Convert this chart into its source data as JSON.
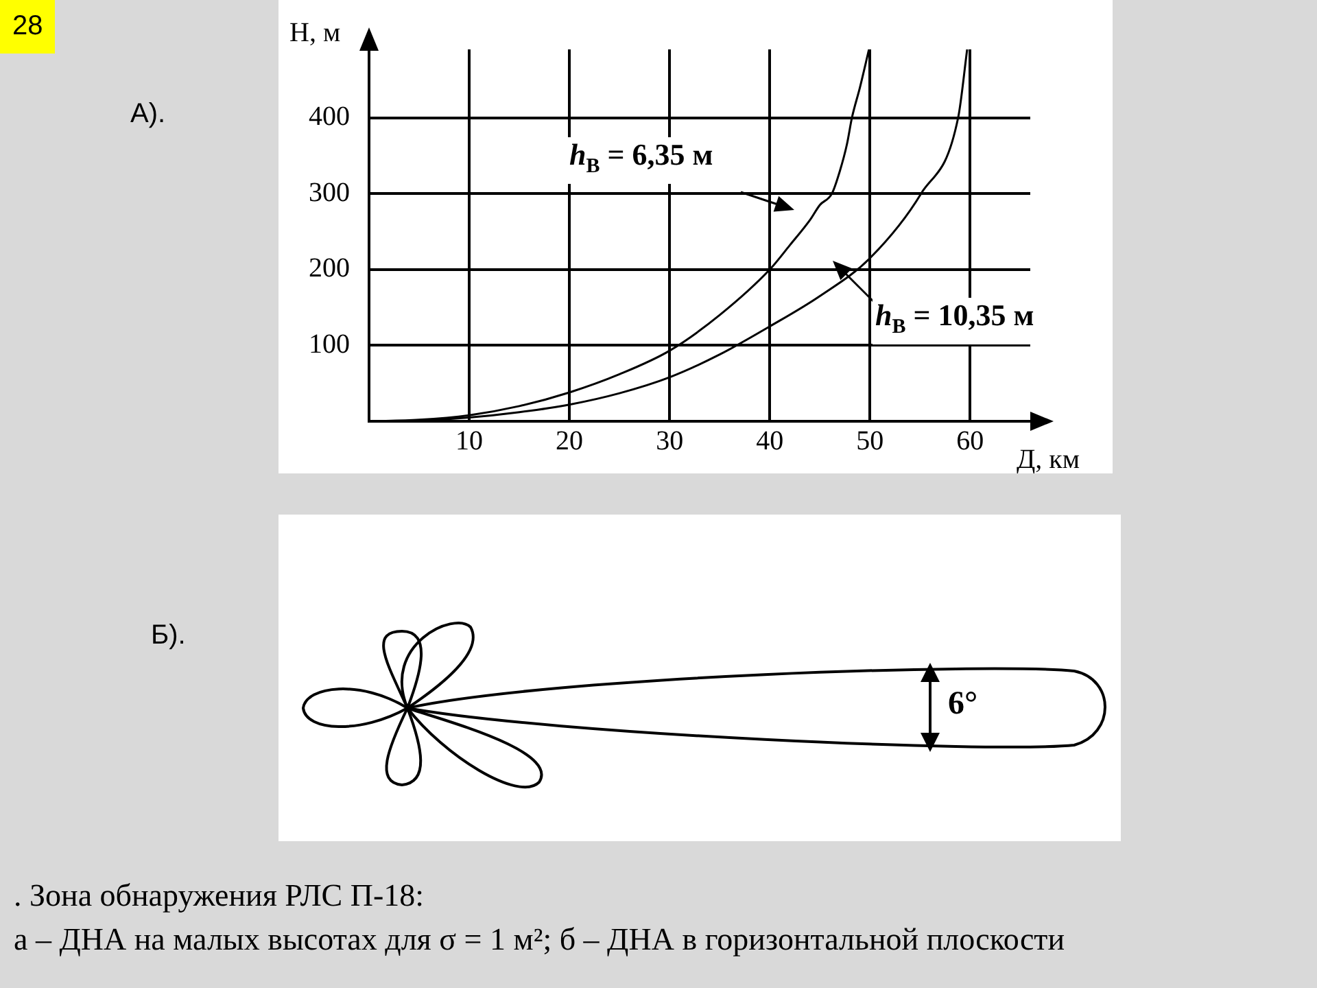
{
  "chart_data": {
    "type": "line",
    "xlabel": "Д, км",
    "ylabel": "H, м",
    "x": [
      0,
      5,
      10,
      15,
      20,
      25,
      30,
      35,
      40,
      42,
      44,
      45,
      46.2,
      47,
      47.7,
      48.2,
      49,
      49.9
    ],
    "series": [
      {
        "color": "#000000",
        "values": [
          0,
          2,
          8,
          20,
          38,
          62,
          93,
          140,
          200,
          232,
          265,
          285,
          300,
          330,
          365,
          400,
          440,
          490
        ]
      },
      {
        "color": "#000000",
        "x": [
          0,
          5,
          10,
          15,
          20,
          25,
          30,
          35,
          40,
          45,
          50,
          55.1,
          58.8,
          59.7
        ],
        "values": [
          0,
          1,
          5,
          12,
          22,
          37,
          58,
          88,
          125,
          165,
          215,
          300,
          400,
          490
        ]
      }
    ],
    "xlim": [
      0,
      66
    ],
    "ylim": [
      0,
      490
    ],
    "xticks": [
      10,
      20,
      30,
      40,
      50,
      60
    ],
    "yticks": [
      100,
      200,
      300,
      400
    ],
    "grid": true,
    "marker": "none",
    "line_style": "solid",
    "annotations": [
      "h$_{В}$ = 6,35 м",
      "h$_{В}$ = 10,35 м",
      "28",
      "А).",
      "Б).",
      "6°",
      ". Зона обнаружения РЛС П-18:",
      "а – ДНА на малых высотах для σ = 1 м²; б – ДНА в горизонтальной плоскости"
    ]
  }
}
